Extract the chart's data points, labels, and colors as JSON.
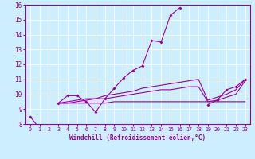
{
  "xlabel": "Windchill (Refroidissement éolien,°C)",
  "background_color": "#cceeff",
  "line_color": "#990099",
  "x_values": [
    0,
    1,
    2,
    3,
    4,
    5,
    6,
    7,
    8,
    9,
    10,
    11,
    12,
    13,
    14,
    15,
    16,
    17,
    18,
    19,
    20,
    21,
    22,
    23
  ],
  "line1": [
    8.5,
    7.7,
    null,
    9.4,
    9.9,
    9.9,
    9.5,
    8.8,
    9.7,
    10.4,
    11.1,
    11.6,
    11.9,
    13.6,
    13.5,
    15.3,
    15.8,
    null,
    null,
    9.3,
    9.6,
    10.3,
    10.5,
    11.0
  ],
  "line2": [
    null,
    null,
    null,
    9.4,
    9.4,
    9.4,
    9.4,
    9.4,
    9.4,
    9.5,
    9.5,
    9.5,
    9.5,
    9.5,
    9.5,
    9.5,
    9.5,
    9.5,
    9.5,
    9.5,
    9.5,
    9.5,
    9.5,
    9.5
  ],
  "line3": [
    null,
    null,
    null,
    9.4,
    9.4,
    9.5,
    9.6,
    9.7,
    9.7,
    9.8,
    9.9,
    10.0,
    10.1,
    10.2,
    10.3,
    10.3,
    10.4,
    10.5,
    10.5,
    9.5,
    9.6,
    9.8,
    10.0,
    10.9
  ],
  "line4": [
    null,
    null,
    null,
    9.4,
    9.5,
    9.6,
    9.7,
    9.7,
    9.9,
    10.0,
    10.1,
    10.2,
    10.4,
    10.5,
    10.6,
    10.7,
    10.8,
    10.9,
    11.0,
    9.6,
    9.8,
    10.0,
    10.3,
    11.0
  ],
  "ylim": [
    8,
    16
  ],
  "xlim": [
    -0.5,
    23.5
  ],
  "yticks": [
    8,
    9,
    10,
    11,
    12,
    13,
    14,
    15,
    16
  ],
  "xticks": [
    0,
    1,
    2,
    3,
    4,
    5,
    6,
    7,
    8,
    9,
    10,
    11,
    12,
    13,
    14,
    15,
    16,
    17,
    18,
    19,
    20,
    21,
    22,
    23
  ]
}
